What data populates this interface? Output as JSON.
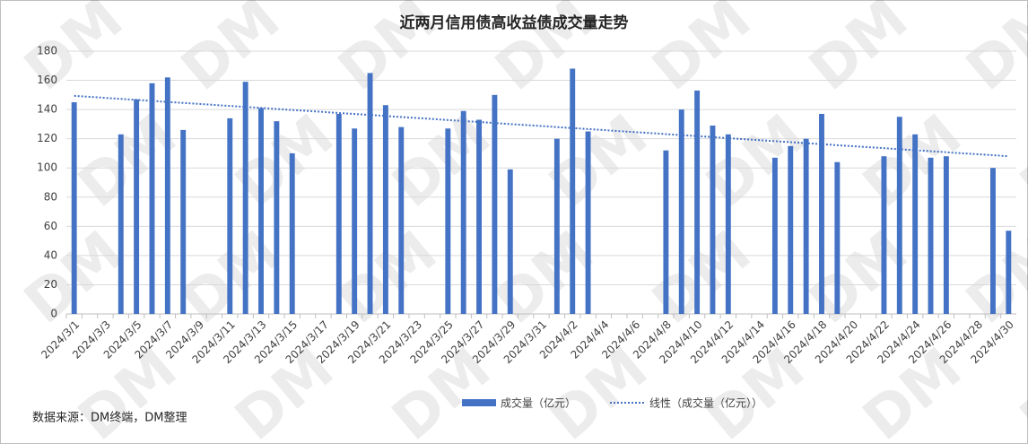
{
  "chart_data": {
    "type": "bar",
    "title": "近两月信用债高收益债成交量走势",
    "source": "数据来源：DM终端，DM整理",
    "watermark": "DM",
    "categories": [
      "2024/3/1",
      null,
      "2024/3/3",
      null,
      "2024/3/5",
      null,
      "2024/3/7",
      null,
      "2024/3/9",
      null,
      "2024/3/11",
      null,
      "2024/3/13",
      null,
      "2024/3/15",
      null,
      "2024/3/17",
      null,
      "2024/3/19",
      null,
      "2024/3/21",
      null,
      "2024/3/23",
      null,
      "2024/3/25",
      null,
      "2024/3/27",
      null,
      "2024/3/29",
      null,
      "2024/3/31",
      null,
      "2024/4/2",
      null,
      "2024/4/4",
      null,
      "2024/4/6",
      null,
      "2024/4/8",
      null,
      "2024/4/10",
      null,
      "2024/4/12",
      null,
      "2024/4/14",
      null,
      "2024/4/16",
      null,
      "2024/4/18",
      null,
      "2024/4/20",
      null,
      "2024/4/22",
      null,
      "2024/4/24",
      null,
      "2024/4/26",
      null,
      "2024/4/28",
      null,
      "2024/4/30"
    ],
    "series": [
      {
        "name": "成交量（亿元）",
        "color": "#4472c4",
        "values": [
          145,
          null,
          null,
          123,
          147,
          158,
          162,
          126,
          null,
          null,
          134,
          159,
          141,
          132,
          110,
          null,
          null,
          137,
          127,
          165,
          143,
          128,
          null,
          null,
          127,
          139,
          133,
          150,
          99,
          null,
          null,
          120,
          168,
          125,
          null,
          null,
          null,
          null,
          112,
          140,
          153,
          129,
          123,
          null,
          null,
          107,
          115,
          120,
          137,
          104,
          null,
          null,
          108,
          135,
          123,
          107,
          108,
          null,
          null,
          100,
          57
        ]
      }
    ],
    "trend": {
      "name": "线性（成交量（亿元））",
      "color": "#4472c4",
      "style": "dotted"
    },
    "ylim": [
      0,
      180
    ],
    "yticks": [
      0,
      20,
      40,
      60,
      80,
      100,
      120,
      140,
      160,
      180
    ],
    "grid": true
  }
}
